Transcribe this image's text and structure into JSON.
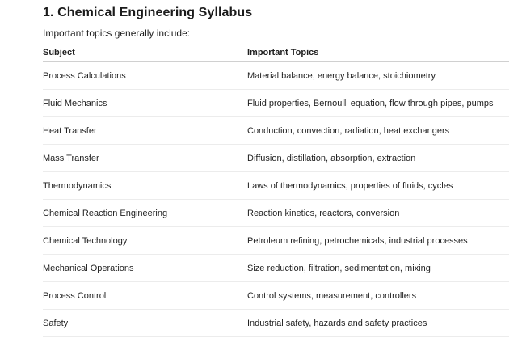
{
  "document": {
    "title": "1. Chemical Engineering Syllabus",
    "intro": "Important topics generally include:"
  },
  "table": {
    "headers": [
      "Subject",
      "Important Topics"
    ],
    "rows": [
      [
        "Process Calculations",
        "Material balance, energy balance, stoichiometry"
      ],
      [
        "Fluid Mechanics",
        "Fluid properties, Bernoulli equation, flow through pipes, pumps"
      ],
      [
        "Heat Transfer",
        "Conduction, convection, radiation, heat exchangers"
      ],
      [
        "Mass Transfer",
        "Diffusion, distillation, absorption, extraction"
      ],
      [
        "Thermodynamics",
        "Laws of thermodynamics, properties of fluids, cycles"
      ],
      [
        "Chemical Reaction Engineering",
        "Reaction kinetics, reactors, conversion"
      ],
      [
        "Chemical Technology",
        "Petroleum refining, petrochemicals, industrial processes"
      ],
      [
        "Mechanical Operations",
        "Size reduction, filtration, sedimentation, mixing"
      ],
      [
        "Process Control",
        "Control systems, measurement, controllers"
      ],
      [
        "Safety",
        "Industrial safety, hazards and safety practices"
      ]
    ]
  }
}
